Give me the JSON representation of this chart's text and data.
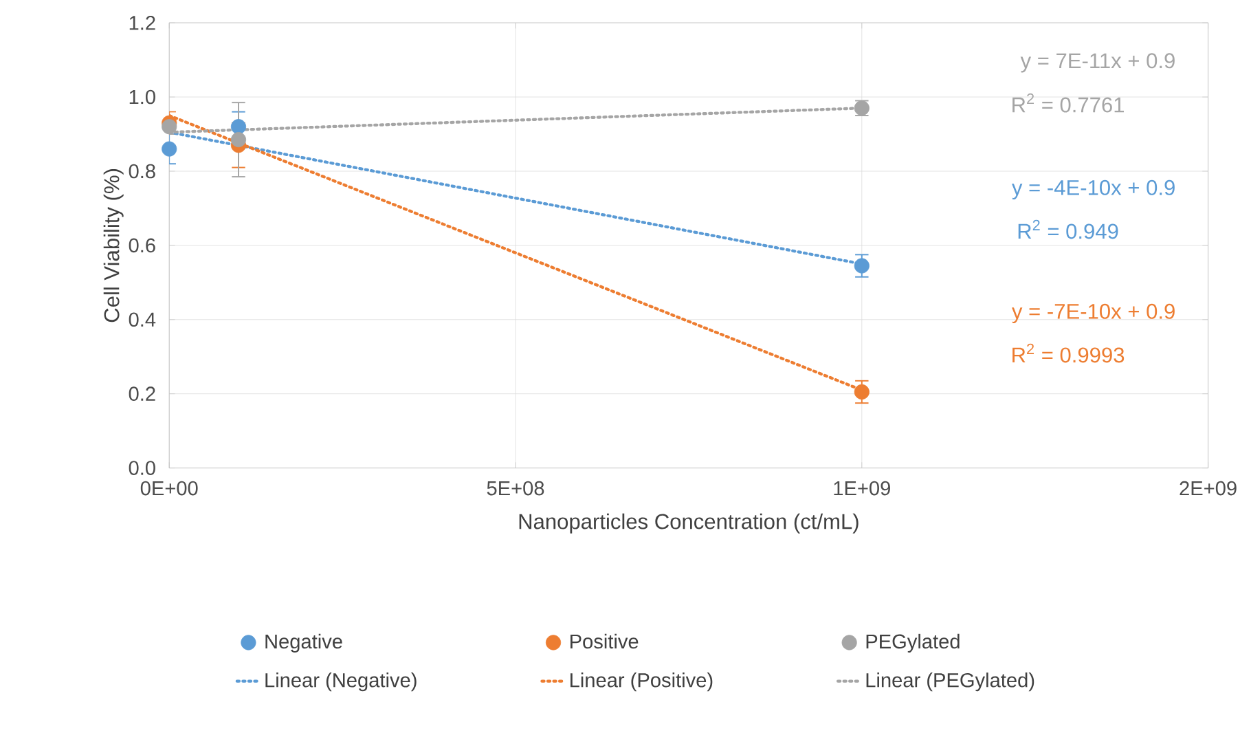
{
  "chart_data": {
    "type": "scatter",
    "xlabel": "Nanoparticles Concentration (ct/mL)",
    "ylabel": "Cell Viability (%)",
    "xlim": [
      0,
      1500000000
    ],
    "xticks": [
      {
        "value": 0,
        "label": "0E+00"
      },
      {
        "value": 500000000,
        "label": "5E+08"
      },
      {
        "value": 1000000000,
        "label": "1E+09"
      },
      {
        "value": 1500000000,
        "label": "2E+09"
      }
    ],
    "ylim": [
      0,
      1.2
    ],
    "yticks": [
      {
        "value": 0,
        "label": "0.0"
      },
      {
        "value": 0.2,
        "label": "0.2"
      },
      {
        "value": 0.4,
        "label": "0.4"
      },
      {
        "value": 0.6,
        "label": "0.6"
      },
      {
        "value": 0.8,
        "label": "0.8"
      },
      {
        "value": 1.0,
        "label": "1.0"
      },
      {
        "value": 1.2,
        "label": "1.2"
      }
    ],
    "grid": true,
    "legend": "bottom",
    "marker": "circle",
    "annotations": [
      "y = 7E-11x + 0.9",
      "R$^{2}$ = 0.7761",
      "y = -4E-10x + 0.9",
      "R$^{2}$ = 0.949",
      "y = -7E-10x + 0.9",
      "R$^{2}$ = 0.9993"
    ],
    "series": [
      {
        "name": "Negative",
        "color": "#5b9bd5",
        "x": [
          0,
          100000000,
          1000000000
        ],
        "values": [
          0.86,
          0.92,
          0.545
        ],
        "errors": [
          0.04,
          0.04,
          0.03
        ]
      },
      {
        "name": "Positive",
        "color": "#ed7d31",
        "x": [
          0,
          100000000,
          1000000000
        ],
        "values": [
          0.93,
          0.87,
          0.205
        ],
        "errors": [
          0.03,
          0.06,
          0.03
        ]
      },
      {
        "name": "PEGylated",
        "color": "#a5a5a5",
        "x": [
          0,
          100000000,
          1000000000
        ],
        "values": [
          0.92,
          0.885,
          0.97
        ],
        "errors": [
          0.02,
          0.1,
          0.02
        ]
      },
      {
        "name": "Linear (Negative)",
        "type": "line",
        "color": "#5b9bd5",
        "marker": "none",
        "line_style": "dotted",
        "x": [
          0,
          1000000000
        ],
        "values": [
          0.905,
          0.55
        ]
      },
      {
        "name": "Linear (Positive)",
        "type": "line",
        "color": "#ed7d31",
        "marker": "none",
        "line_style": "dotted",
        "x": [
          0,
          1000000000
        ],
        "values": [
          0.95,
          0.21
        ]
      },
      {
        "name": "Linear (PEGylated)",
        "type": "line",
        "color": "#a5a5a5",
        "marker": "none",
        "line_style": "dotted",
        "x": [
          0,
          1000000000
        ],
        "values": [
          0.905,
          0.97
        ]
      }
    ]
  }
}
